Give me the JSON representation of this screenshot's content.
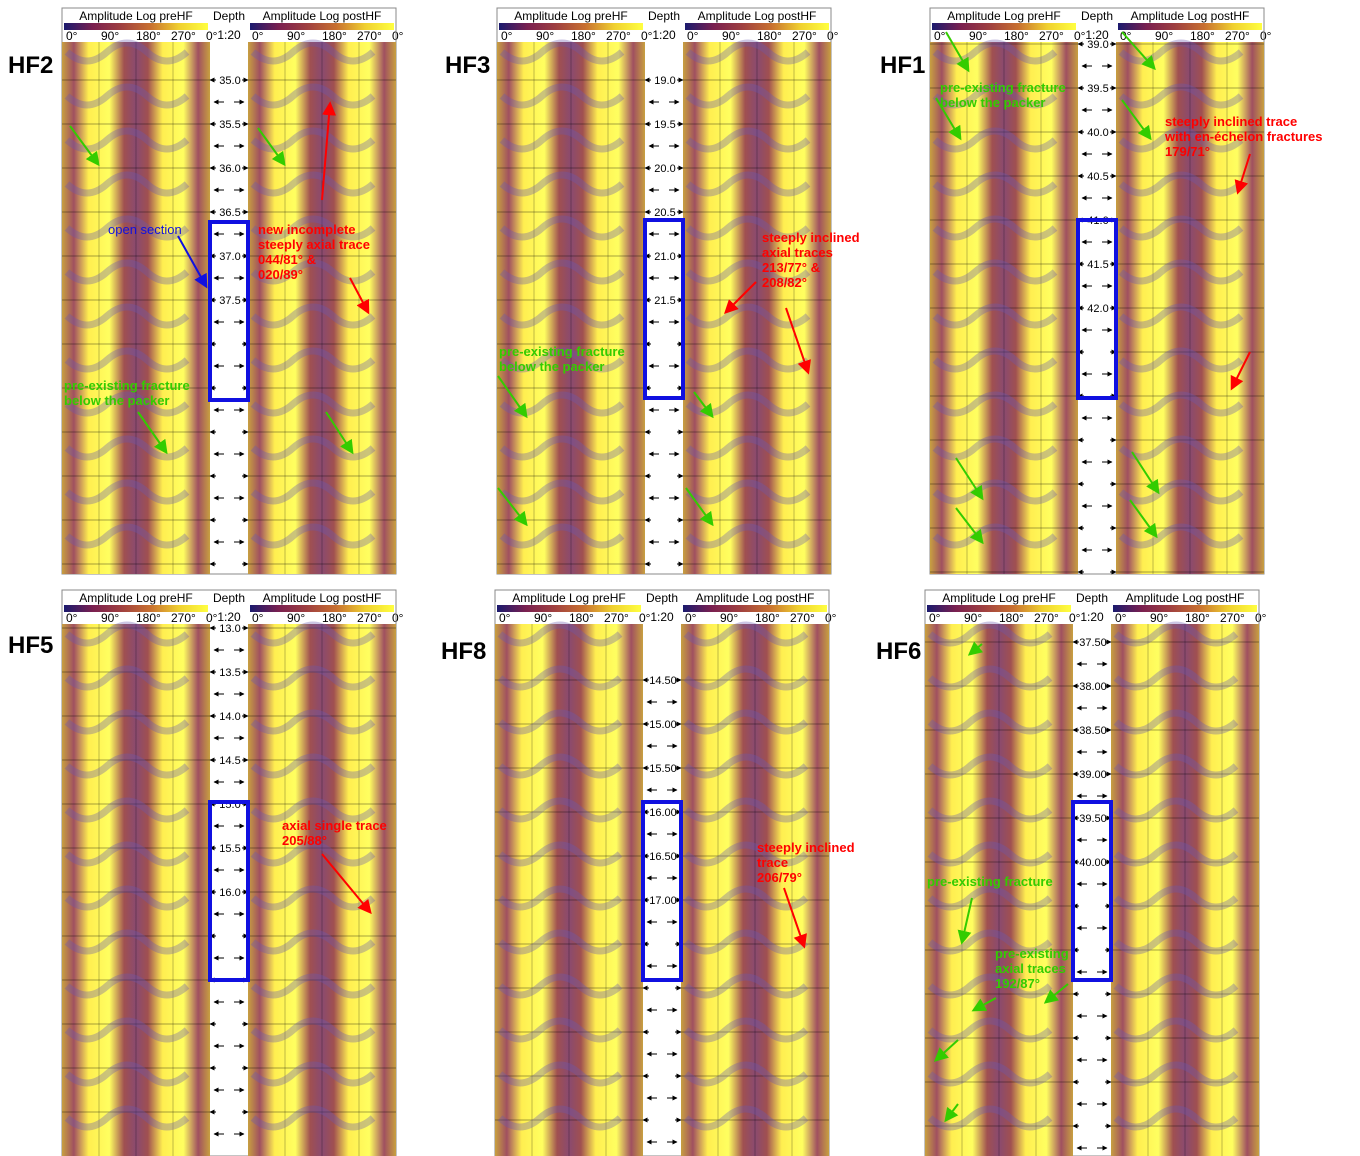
{
  "headers": {
    "pre": "Amplitude Log preHF",
    "depth": "Depth",
    "scale": "1:20",
    "post": "Amplitude Log postHF",
    "angles": [
      "0°",
      "90°",
      "180°",
      "270°",
      "0°"
    ]
  },
  "colors": {
    "scale": [
      "#1a1a6e",
      "#7a2050",
      "#a04040",
      "#c87030",
      "#f0d030",
      "#ffff40"
    ],
    "box": "#1010e0",
    "red": "#ff0000",
    "green": "#33cc00",
    "blue": "#1010e0"
  },
  "panels": [
    {
      "id": "HF2",
      "depths": [
        "35.0",
        "35.5",
        "36.0",
        "36.5",
        "37.0",
        "37.5"
      ],
      "annotations": [
        {
          "color": "blue",
          "lines": [
            "open section"
          ]
        },
        {
          "color": "red",
          "lines": [
            "new incomplete",
            "steeply axial trace",
            "044/81° &",
            "020/89°"
          ]
        },
        {
          "color": "green",
          "lines": [
            "pre-existing fracture",
            "below the packer"
          ]
        }
      ]
    },
    {
      "id": "HF3",
      "depths": [
        "19.0",
        "19.5",
        "20.0",
        "20.5",
        "21.0",
        "21.5"
      ],
      "annotations": [
        {
          "color": "red",
          "lines": [
            "steeply inclined",
            "axial traces",
            "213/77° &",
            "208/82°"
          ]
        },
        {
          "color": "green",
          "lines": [
            "pre-existing fracture",
            "below the packer"
          ]
        }
      ]
    },
    {
      "id": "HF1",
      "depths": [
        "39.0",
        "39.5",
        "40.0",
        "40.5",
        "41.0",
        "41.5",
        "42.0"
      ],
      "annotations": [
        {
          "color": "green",
          "lines": [
            "pre-existing fracture",
            "below the packer"
          ]
        },
        {
          "color": "red",
          "lines": [
            "steeply inclined trace",
            "with en-échelon fractures",
            "179/71°"
          ]
        }
      ]
    },
    {
      "id": "HF5",
      "depths": [
        "13.0",
        "13.5",
        "14.0",
        "14.5",
        "15.0",
        "15.5",
        "16.0"
      ],
      "annotations": [
        {
          "color": "red",
          "lines": [
            "axial single trace",
            "205/88°"
          ]
        }
      ]
    },
    {
      "id": "HF8",
      "depths": [
        "14.50",
        "15.00",
        "15.50",
        "16.00",
        "16.50",
        "17.00"
      ],
      "annotations": [
        {
          "color": "red",
          "lines": [
            "steeply inclined",
            "trace",
            "206/79°"
          ]
        }
      ]
    },
    {
      "id": "HF6",
      "depths": [
        "37.50",
        "38.00",
        "38.50",
        "39.00",
        "39.50",
        "40.00"
      ],
      "annotations": [
        {
          "color": "green",
          "lines": [
            "pre-existing fracture"
          ]
        },
        {
          "color": "green",
          "lines": [
            "pre-existing",
            "axial traces",
            "192/87°"
          ]
        }
      ]
    }
  ]
}
